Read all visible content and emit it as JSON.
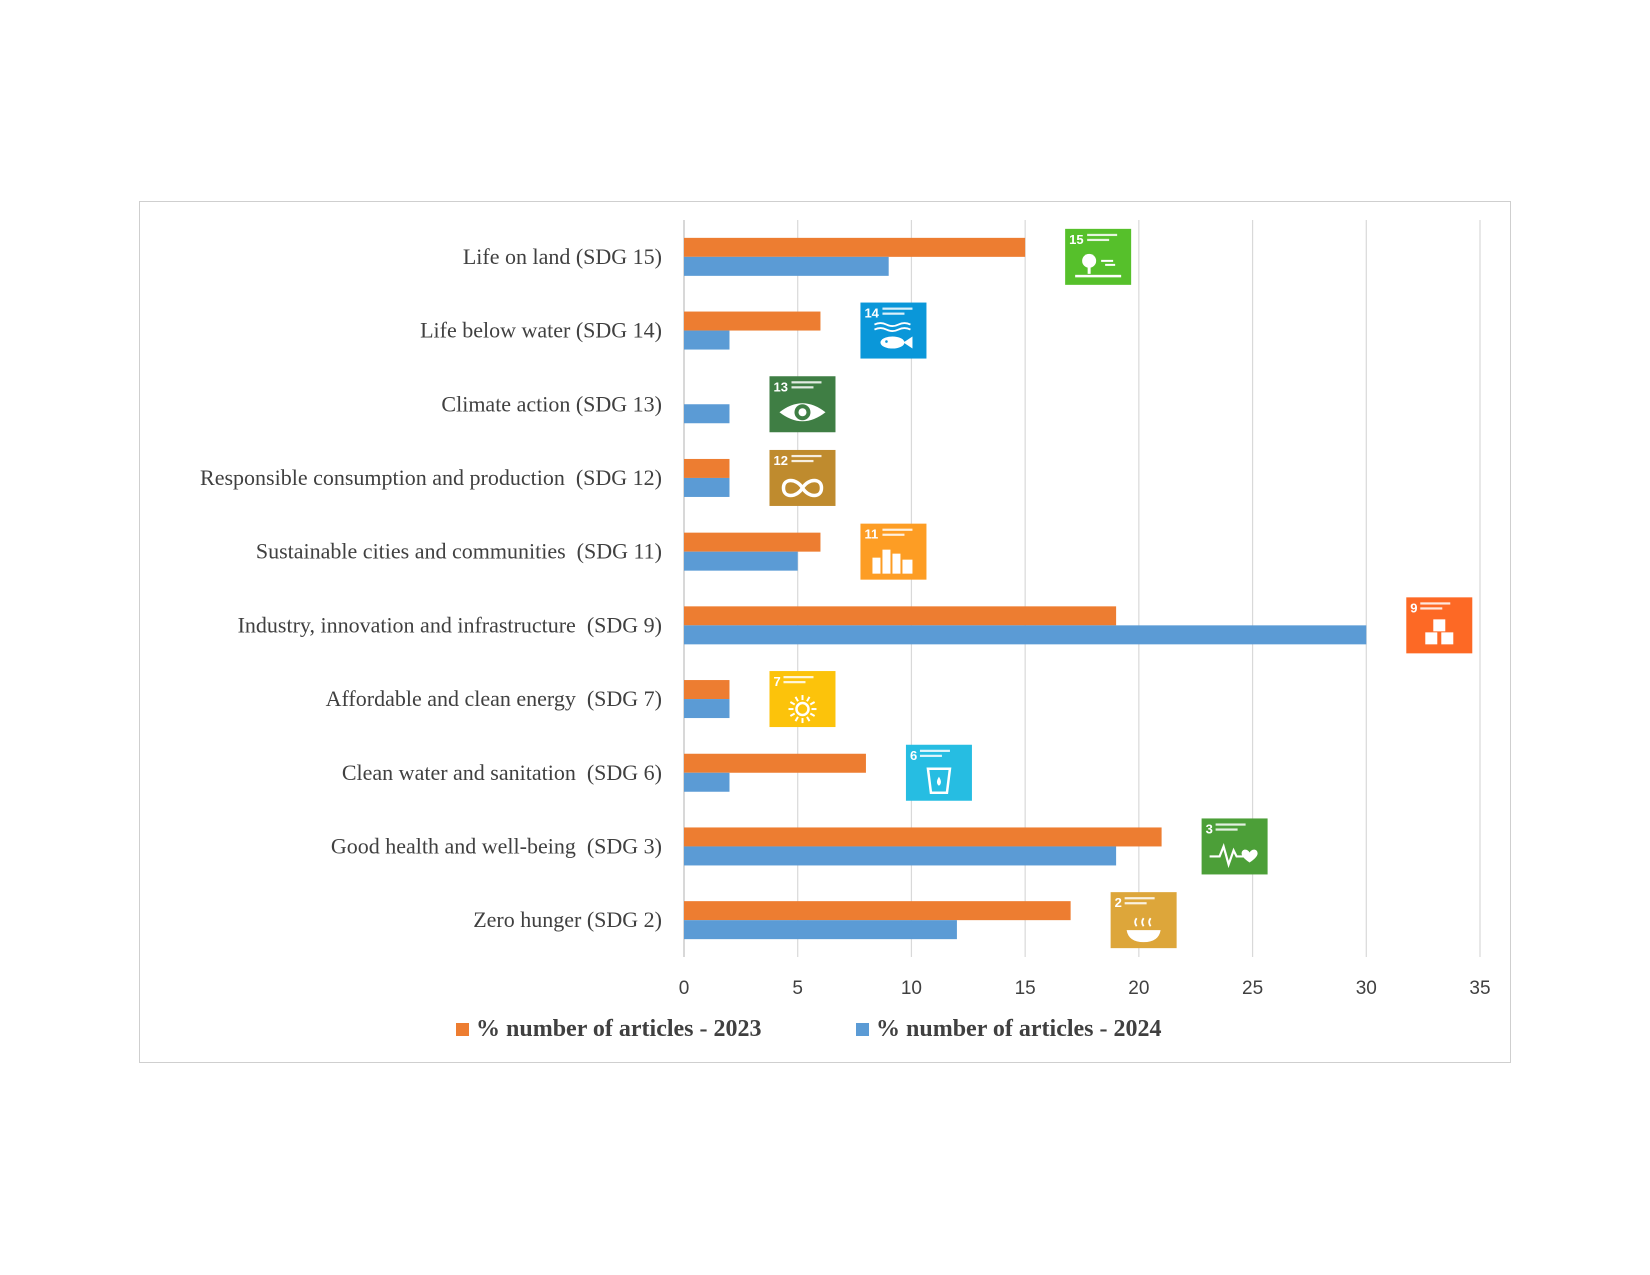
{
  "chart_data": {
    "type": "bar",
    "orientation": "horizontal",
    "categories": [
      "Life on land (SDG 15)",
      "Life below water (SDG 14)",
      "Climate action (SDG 13)",
      "Responsible consumption and production  (SDG 12)",
      "Sustainable cities and communities  (SDG 11)",
      "Industry, innovation and infrastructure  (SDG 9)",
      "Affordable and clean energy  (SDG 7)",
      "Clean water and sanitation  (SDG 6)",
      "Good health and well-being  (SDG 3)",
      "Zero hunger (SDG 2)"
    ],
    "series": [
      {
        "name": "% number of articles - 2023",
        "color": "#ED7D31",
        "values": [
          15,
          6,
          0,
          2,
          6,
          19,
          2,
          8,
          21,
          17
        ]
      },
      {
        "name": "% number of articles - 2024",
        "color": "#5B9BD5",
        "values": [
          9,
          2,
          2,
          2,
          5,
          30,
          2,
          2,
          19,
          12
        ]
      }
    ],
    "xlim": [
      0,
      35
    ],
    "xticks": [
      0,
      5,
      10,
      15,
      20,
      25,
      30,
      35
    ],
    "grid": "vertical",
    "legend_position": "bottom",
    "sdg_icons": [
      {
        "number": "15",
        "icon": "tree-icon",
        "color": "#56C02B"
      },
      {
        "number": "14",
        "icon": "fish-icon",
        "color": "#0A97D9"
      },
      {
        "number": "13",
        "icon": "eye-globe-icon",
        "color": "#3F7E44"
      },
      {
        "number": "12",
        "icon": "infinity-icon",
        "color": "#BF8B2E"
      },
      {
        "number": "11",
        "icon": "city-icon",
        "color": "#FD9D24"
      },
      {
        "number": "9",
        "icon": "cubes-icon",
        "color": "#FD6925"
      },
      {
        "number": "7",
        "icon": "sun-icon",
        "color": "#FCC30B"
      },
      {
        "number": "6",
        "icon": "water-glass-icon",
        "color": "#26BDE2"
      },
      {
        "number": "3",
        "icon": "heartbeat-icon",
        "color": "#4C9F38"
      },
      {
        "number": "2",
        "icon": "bowl-icon",
        "color": "#DDA63A"
      }
    ]
  }
}
